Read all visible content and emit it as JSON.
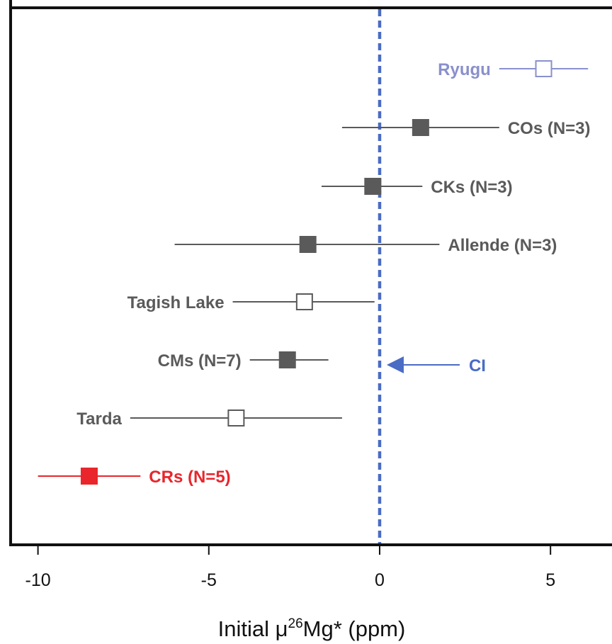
{
  "chart_data": {
    "type": "scatter",
    "title": "",
    "xlabel": {
      "prefix": "Initial ",
      "mu": "μ",
      "sup": "26",
      "suffix": "Mg* (ppm)"
    },
    "ylabel": "",
    "xlim": [
      -10.8,
      6.8
    ],
    "xticks": [
      {
        "value": -10,
        "label": "-10"
      },
      {
        "value": -5,
        "label": "-5"
      },
      {
        "value": 0,
        "label": "0"
      },
      {
        "value": 5,
        "label": "5"
      }
    ],
    "grid": false,
    "series": [
      {
        "name": "Ryugu",
        "x": 4.8,
        "err_low": 3.5,
        "err_high": 6.1,
        "marker": "open",
        "color": "#8a90cc",
        "label_side": "left"
      },
      {
        "name": "COs (N=3)",
        "x": 1.2,
        "err_low": -1.1,
        "err_high": 3.5,
        "marker": "filled",
        "color": "#5a5a5a",
        "label_side": "right"
      },
      {
        "name": "CKs (N=3)",
        "x": -0.2,
        "err_low": -1.7,
        "err_high": 1.25,
        "marker": "filled",
        "color": "#5a5a5a",
        "label_side": "right"
      },
      {
        "name": "Allende (N=3)",
        "x": -2.1,
        "err_low": -6.0,
        "err_high": 1.75,
        "marker": "filled",
        "color": "#5a5a5a",
        "label_side": "right"
      },
      {
        "name": "Tagish Lake",
        "x": -2.2,
        "err_low": -4.3,
        "err_high": -0.15,
        "marker": "open",
        "color": "#5a5a5a",
        "label_side": "left"
      },
      {
        "name": "CMs (N=7)",
        "x": -2.7,
        "err_low": -3.8,
        "err_high": -1.5,
        "marker": "filled",
        "color": "#5a5a5a",
        "label_side": "left"
      },
      {
        "name": "Tarda",
        "x": -4.2,
        "err_low": -7.3,
        "err_high": -1.1,
        "marker": "open",
        "color": "#5a5a5a",
        "label_side": "left"
      },
      {
        "name": "CRs (N=5)",
        "x": -8.5,
        "err_low": -10.0,
        "err_high": -7.0,
        "marker": "filled",
        "color": "#e8262c",
        "label_side": "right"
      }
    ],
    "reference_line": {
      "x": 0,
      "style": "dashed",
      "color": "#4a6cc4"
    },
    "annotation": {
      "text": "CI",
      "color": "#4a6cc4",
      "arrow": "points left to reference line"
    }
  }
}
